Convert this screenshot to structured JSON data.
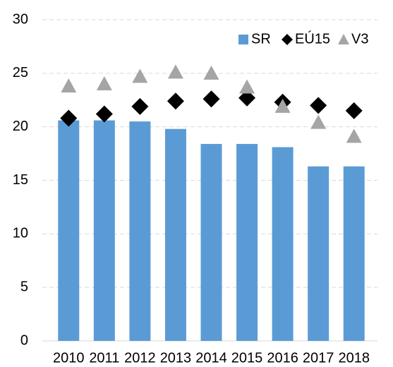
{
  "chart_data": {
    "type": "bar",
    "categories": [
      "2010",
      "2011",
      "2012",
      "2013",
      "2014",
      "2015",
      "2016",
      "2017",
      "2018"
    ],
    "series": [
      {
        "name": "SR",
        "color": "#5b9bd5",
        "marker": "bar",
        "values": [
          20.6,
          20.6,
          20.5,
          19.8,
          18.4,
          18.4,
          18.1,
          16.3,
          16.3
        ]
      },
      {
        "name": "EÚ15",
        "color": "#000000",
        "marker": "diamond",
        "values": [
          20.8,
          21.2,
          21.9,
          22.4,
          22.6,
          22.7,
          22.3,
          22.0,
          21.5
        ]
      },
      {
        "name": "V3",
        "color": "#a5a5a5",
        "marker": "triangle",
        "values": [
          23.8,
          24.0,
          24.7,
          25.1,
          25.0,
          23.7,
          21.9,
          20.4,
          19.1
        ]
      }
    ],
    "ylim": [
      0,
      30
    ],
    "yticks": [
      0,
      5,
      10,
      15,
      20,
      25,
      30
    ],
    "grid": true,
    "legend": "top-right"
  }
}
